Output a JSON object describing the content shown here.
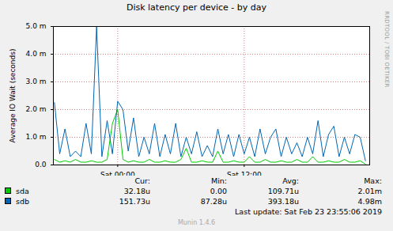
{
  "chart_data": {
    "type": "line",
    "title": "Disk latency per device - by day",
    "y_label": "Average IO Wait (seconds)",
    "x": [
      -6,
      -5.5,
      -5,
      -4.5,
      -4,
      -3.5,
      -3,
      -2.5,
      -2,
      -1.5,
      -1,
      -0.5,
      0,
      0.5,
      1,
      1.5,
      2,
      2.5,
      3,
      3.5,
      4,
      4.5,
      5,
      5.5,
      6,
      6.5,
      7,
      7.5,
      8,
      8.5,
      9,
      9.5,
      10,
      10.5,
      11,
      11.5,
      12,
      12.5,
      13,
      13.5,
      14,
      14.5,
      15,
      15.5,
      16,
      16.5,
      17,
      17.5,
      18,
      18.5,
      19,
      19.5,
      20,
      20.5,
      21,
      21.5,
      22,
      22.5,
      23,
      23.5
    ],
    "series": [
      {
        "name": "sda",
        "color": "#00cc00",
        "values": [
          0.0002,
          0.0001,
          0.00015,
          0.0001,
          0.0002,
          0.0001,
          0.0001,
          0.00015,
          0.0001,
          0.0001,
          0.0002,
          0.0015,
          0.002,
          0.0002,
          0.0001,
          0.00015,
          0.0001,
          0.0001,
          0.0002,
          0.0001,
          0.0001,
          0.00015,
          0.0001,
          0.0001,
          0.0002,
          0.0006,
          0.0001,
          0.0001,
          0.00015,
          0.0001,
          0.0001,
          0.0005,
          0.0001,
          0.0001,
          0.00015,
          0.0001,
          0.0001,
          0.0003,
          0.0001,
          0.0001,
          0.0002,
          0.0001,
          0.0001,
          0.00015,
          0.0001,
          0.0001,
          0.0002,
          0.0001,
          0.0001,
          0.0003,
          0.0001,
          0.0001,
          0.00015,
          0.0001,
          0.0001,
          0.0002,
          0.0001,
          0.0001,
          0.00015,
          3e-05
        ],
        "stats": [
          {
            "value": 3.218e-05,
            "label": "32.18u"
          },
          {
            "value": 0,
            "label": "0.00"
          },
          {
            "value": 0.00010971,
            "label": "109.71u"
          },
          {
            "value": 0.00201,
            "label": "2.01m"
          }
        ]
      },
      {
        "name": "sdb",
        "color": "#0066b3",
        "values": [
          0.00225,
          0.0004,
          0.0013,
          0.0003,
          0.0005,
          0.0003,
          0.0015,
          0.0004,
          0.005,
          0.0003,
          0.0016,
          0.0004,
          0.0023,
          0.002,
          0.0005,
          0.0017,
          0.0003,
          0.001,
          0.0004,
          0.0015,
          0.0003,
          0.0011,
          0.0004,
          0.0015,
          0.0003,
          0.001,
          0.0004,
          0.0012,
          0.0003,
          0.0007,
          0.0003,
          0.0013,
          0.0004,
          0.0011,
          0.0003,
          0.0011,
          0.0004,
          0.001,
          0.0003,
          0.0013,
          0.0004,
          0.001,
          0.0013,
          0.0003,
          0.001,
          0.0004,
          0.0008,
          0.0003,
          0.001,
          0.0004,
          0.0016,
          0.0003,
          0.0011,
          0.0014,
          0.0003,
          0.001,
          0.0004,
          0.0011,
          0.001,
          0.00015
        ],
        "stats": [
          {
            "value": 0.00015173,
            "label": "151.73u"
          },
          {
            "value": 8.728e-05,
            "label": "87.28u"
          },
          {
            "value": 0.00039318,
            "label": "393.18u"
          },
          {
            "value": 0.00498,
            "label": "4.98m"
          }
        ]
      }
    ],
    "stat_labels": [
      "Cur:",
      "Min:",
      "Avg:",
      "Max:"
    ],
    "xlim": [
      -6.1,
      23.9
    ],
    "xticks": [
      {
        "value": 0,
        "label": "Sat 00:00"
      },
      {
        "value": 12,
        "label": "Sat 12:00"
      }
    ],
    "ylim": [
      0,
      0.005
    ],
    "yticks": [
      {
        "value": 0,
        "label": "0.0"
      },
      {
        "value": 0.001,
        "label": "1.0 m"
      },
      {
        "value": 0.002,
        "label": "2.0 m"
      },
      {
        "value": 0.003,
        "label": "3.0 m"
      },
      {
        "value": 0.004,
        "label": "4.0 m"
      },
      {
        "value": 0.005,
        "label": "5.0 m"
      }
    ],
    "grid": true,
    "last_update": "Last update: Sat Feb 23 23:55:06 2019",
    "footer": "Munin 1.4.6",
    "watermark": "RRDTOOL / TOBI OETIKER"
  }
}
